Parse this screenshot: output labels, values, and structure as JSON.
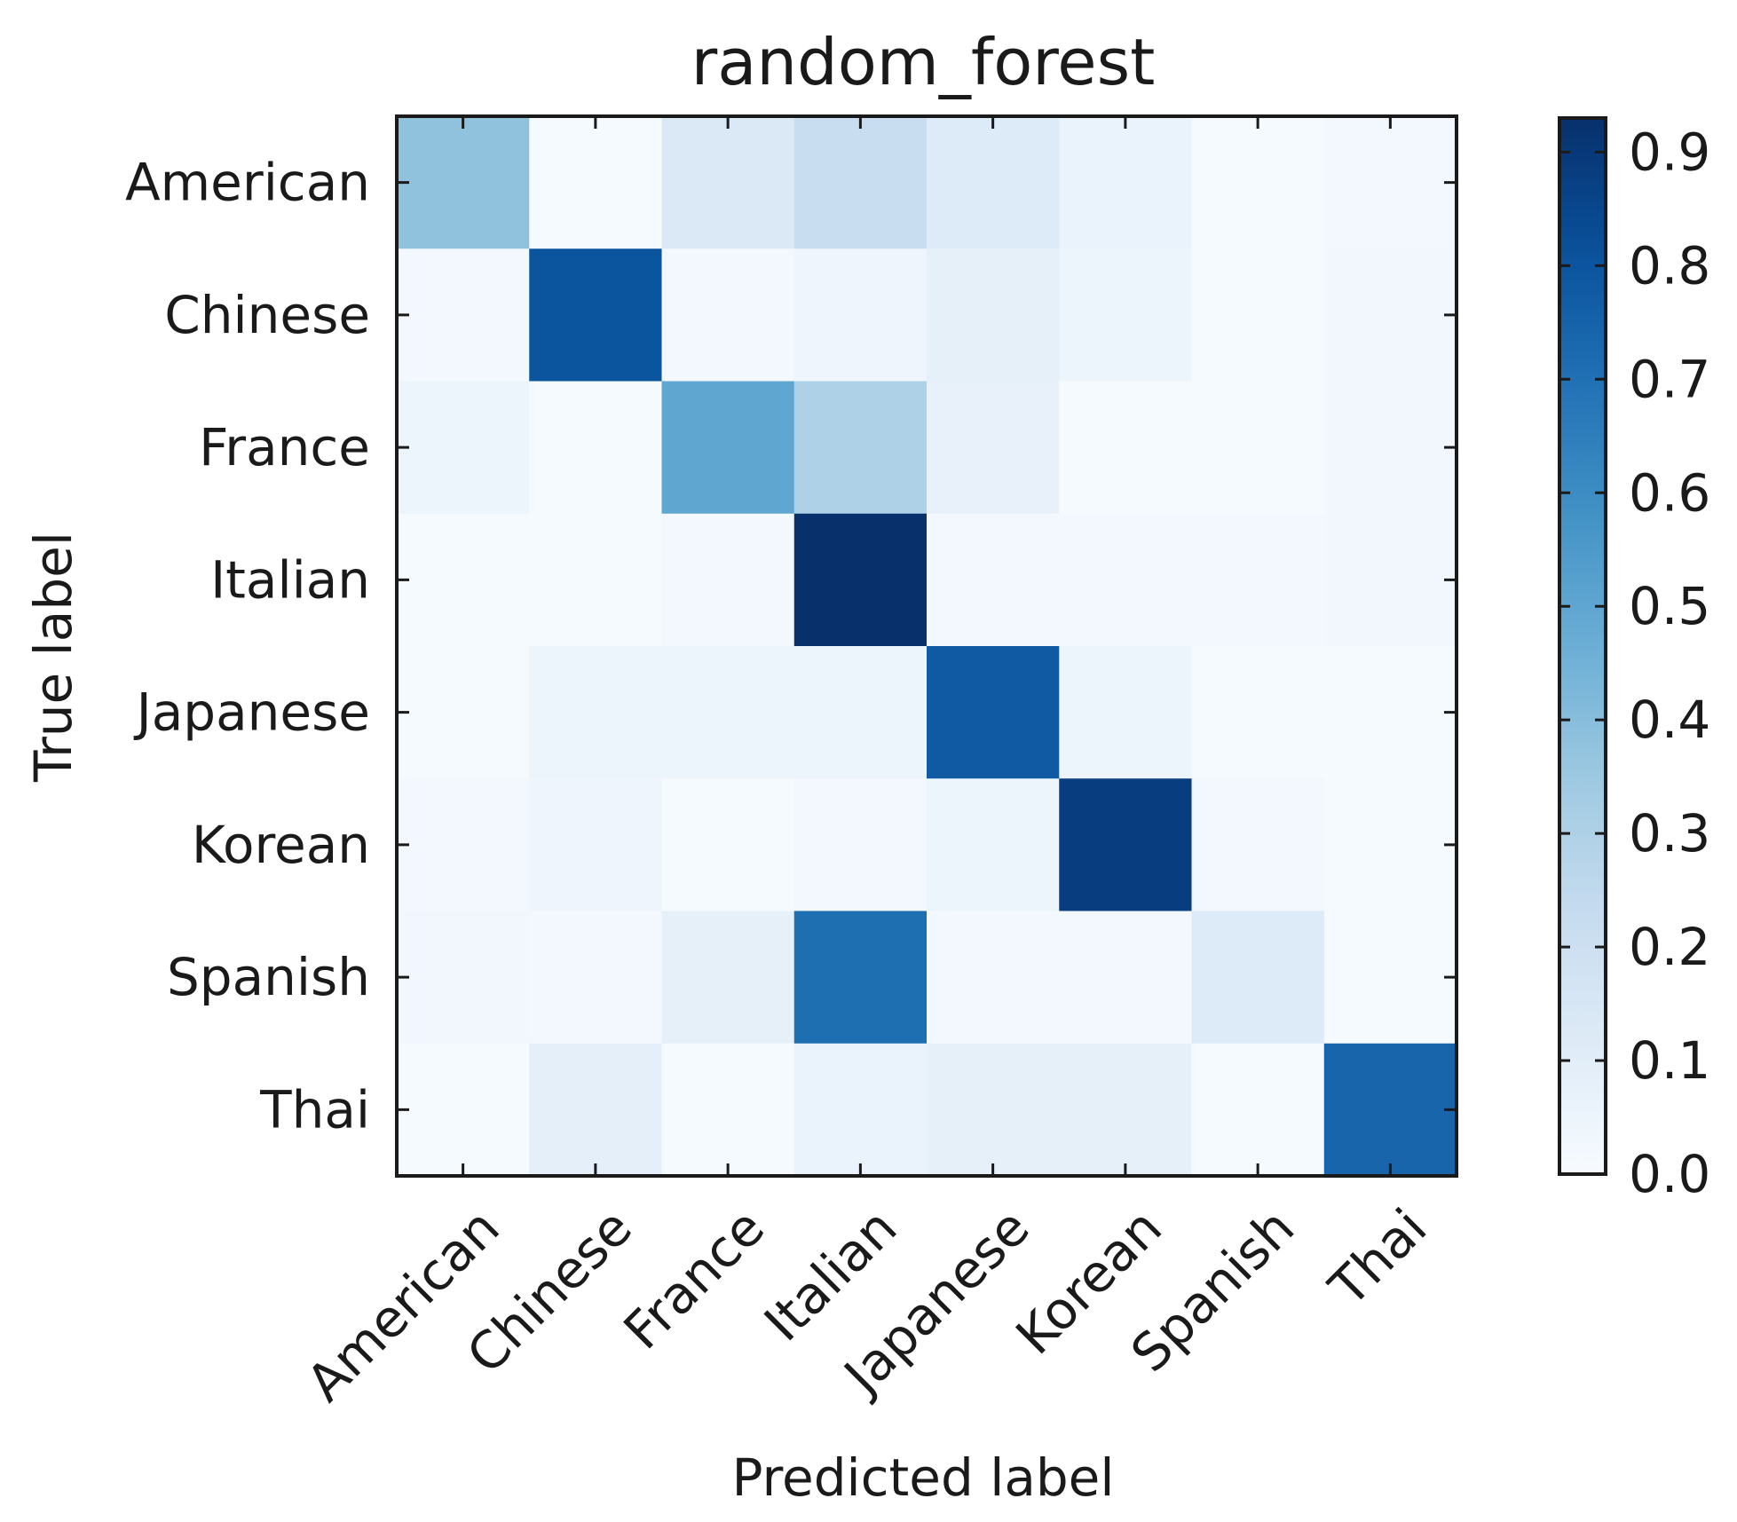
{
  "chart_data": {
    "type": "heatmap",
    "title": "random_forest",
    "xlabel": "Predicted label",
    "ylabel": "True label",
    "x_categories": [
      "American",
      "Chinese",
      "France",
      "Italian",
      "Japanese",
      "Korean",
      "Spanish",
      "Thai"
    ],
    "y_categories": [
      "American",
      "Chinese",
      "France",
      "Italian",
      "Japanese",
      "Korean",
      "Spanish",
      "Thai"
    ],
    "values": [
      [
        0.38,
        0.01,
        0.13,
        0.22,
        0.12,
        0.06,
        0.01,
        0.02
      ],
      [
        0.02,
        0.8,
        0.02,
        0.04,
        0.08,
        0.05,
        0.01,
        0.03
      ],
      [
        0.05,
        0.01,
        0.5,
        0.3,
        0.07,
        0.01,
        0.01,
        0.03
      ],
      [
        0.01,
        0.01,
        0.02,
        0.93,
        0.02,
        0.02,
        0.02,
        0.03
      ],
      [
        0.01,
        0.05,
        0.05,
        0.05,
        0.78,
        0.05,
        0.01,
        0.01
      ],
      [
        0.02,
        0.04,
        0.01,
        0.02,
        0.05,
        0.88,
        0.02,
        0.01
      ],
      [
        0.03,
        0.02,
        0.08,
        0.71,
        0.02,
        0.02,
        0.12,
        0.01
      ],
      [
        0.01,
        0.09,
        0.01,
        0.06,
        0.08,
        0.08,
        0.01,
        0.74
      ]
    ],
    "colormap": "Blues",
    "colorbar": {
      "range": [
        0.0,
        0.93
      ],
      "ticks": [
        0.0,
        0.1,
        0.2,
        0.3,
        0.4,
        0.5,
        0.6,
        0.7,
        0.8,
        0.9
      ],
      "tick_labels": [
        "0.0",
        "0.1",
        "0.2",
        "0.3",
        "0.4",
        "0.5",
        "0.6",
        "0.7",
        "0.8",
        "0.9"
      ]
    },
    "x_tick_rotation_deg": 45
  }
}
